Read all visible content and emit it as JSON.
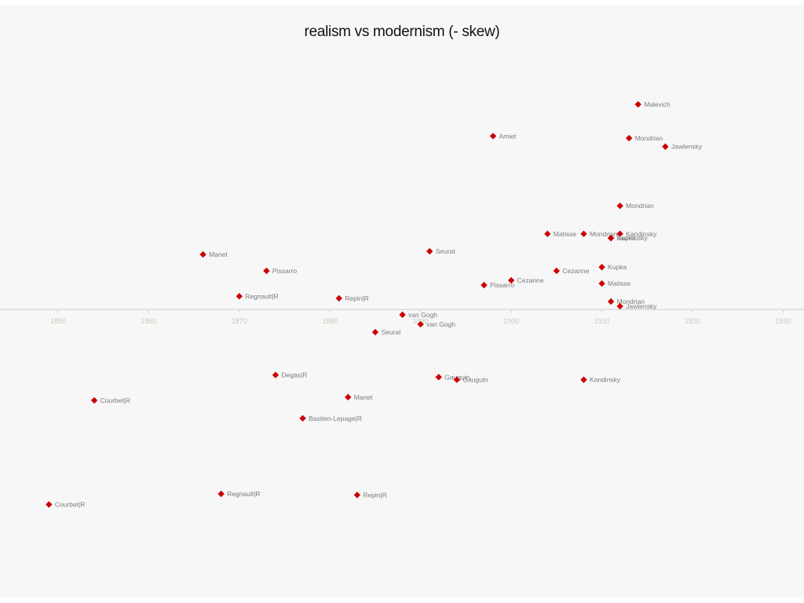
{
  "chart_data": {
    "type": "scatter",
    "title": "realism vs modernism (- skew)",
    "xlabel": "",
    "ylabel": "",
    "xlim": [
      1843.6,
      1932.3
    ],
    "ylim": [
      -5.45,
      5.75
    ],
    "x_ticks": [
      1850,
      1860,
      1870,
      1880,
      1890,
      1900,
      1910,
      1920,
      1930
    ],
    "grid": false,
    "marker": "diamond",
    "marker_color": "#cc0000",
    "axis_color": "#cccccc",
    "points": [
      {
        "label": "Malevich",
        "x": 1914,
        "y": 3.88
      },
      {
        "label": "Amiet",
        "x": 1898,
        "y": 3.28
      },
      {
        "label": "Mondrian",
        "x": 1913,
        "y": 3.24
      },
      {
        "label": "Jawlensky",
        "x": 1917,
        "y": 3.08
      },
      {
        "label": "Mondrian",
        "x": 1912,
        "y": 1.96
      },
      {
        "label": "Matisse",
        "x": 1904,
        "y": 1.43
      },
      {
        "label": "Mondrian",
        "x": 1908,
        "y": 1.43
      },
      {
        "label": "Kandinsky",
        "x": 1912,
        "y": 1.43
      },
      {
        "label": "Kupka",
        "x": 1911,
        "y": 1.35
      },
      {
        "label": "Jawlensky",
        "x": 1911,
        "y": 1.35
      },
      {
        "label": "Seurat",
        "x": 1891,
        "y": 1.1
      },
      {
        "label": "Manet",
        "x": 1866,
        "y": 1.04
      },
      {
        "label": "Pissarro",
        "x": 1873,
        "y": 0.73
      },
      {
        "label": "Cezanne",
        "x": 1905,
        "y": 0.73
      },
      {
        "label": "Kupka",
        "x": 1910,
        "y": 0.8
      },
      {
        "label": "Cezanne",
        "x": 1900,
        "y": 0.55
      },
      {
        "label": "Pissarro",
        "x": 1897,
        "y": 0.46
      },
      {
        "label": "Matisse",
        "x": 1910,
        "y": 0.49
      },
      {
        "label": "Regnault|R",
        "x": 1870,
        "y": 0.25
      },
      {
        "label": "Repin|R",
        "x": 1881,
        "y": 0.21
      },
      {
        "label": "Mondrian",
        "x": 1911,
        "y": 0.15
      },
      {
        "label": "Jawlensky",
        "x": 1912,
        "y": 0.06
      },
      {
        "label": "van Gogh",
        "x": 1888,
        "y": -0.1
      },
      {
        "label": "van Gogh",
        "x": 1890,
        "y": -0.28
      },
      {
        "label": "Seurat",
        "x": 1885,
        "y": -0.43
      },
      {
        "label": "Degas|R",
        "x": 1874,
        "y": -1.24
      },
      {
        "label": "Gauguin",
        "x": 1892,
        "y": -1.28
      },
      {
        "label": "Gauguin",
        "x": 1894,
        "y": -1.33
      },
      {
        "label": "Kandinsky",
        "x": 1908,
        "y": -1.33
      },
      {
        "label": "Courbet|R",
        "x": 1854,
        "y": -1.72
      },
      {
        "label": "Manet",
        "x": 1882,
        "y": -1.66
      },
      {
        "label": "Bastien-Lepage|R",
        "x": 1877,
        "y": -2.06
      },
      {
        "label": "Regnault|R",
        "x": 1868,
        "y": -3.49
      },
      {
        "label": "Repin|R",
        "x": 1883,
        "y": -3.51
      },
      {
        "label": "Courbet|R",
        "x": 1849,
        "y": -3.69
      }
    ]
  }
}
